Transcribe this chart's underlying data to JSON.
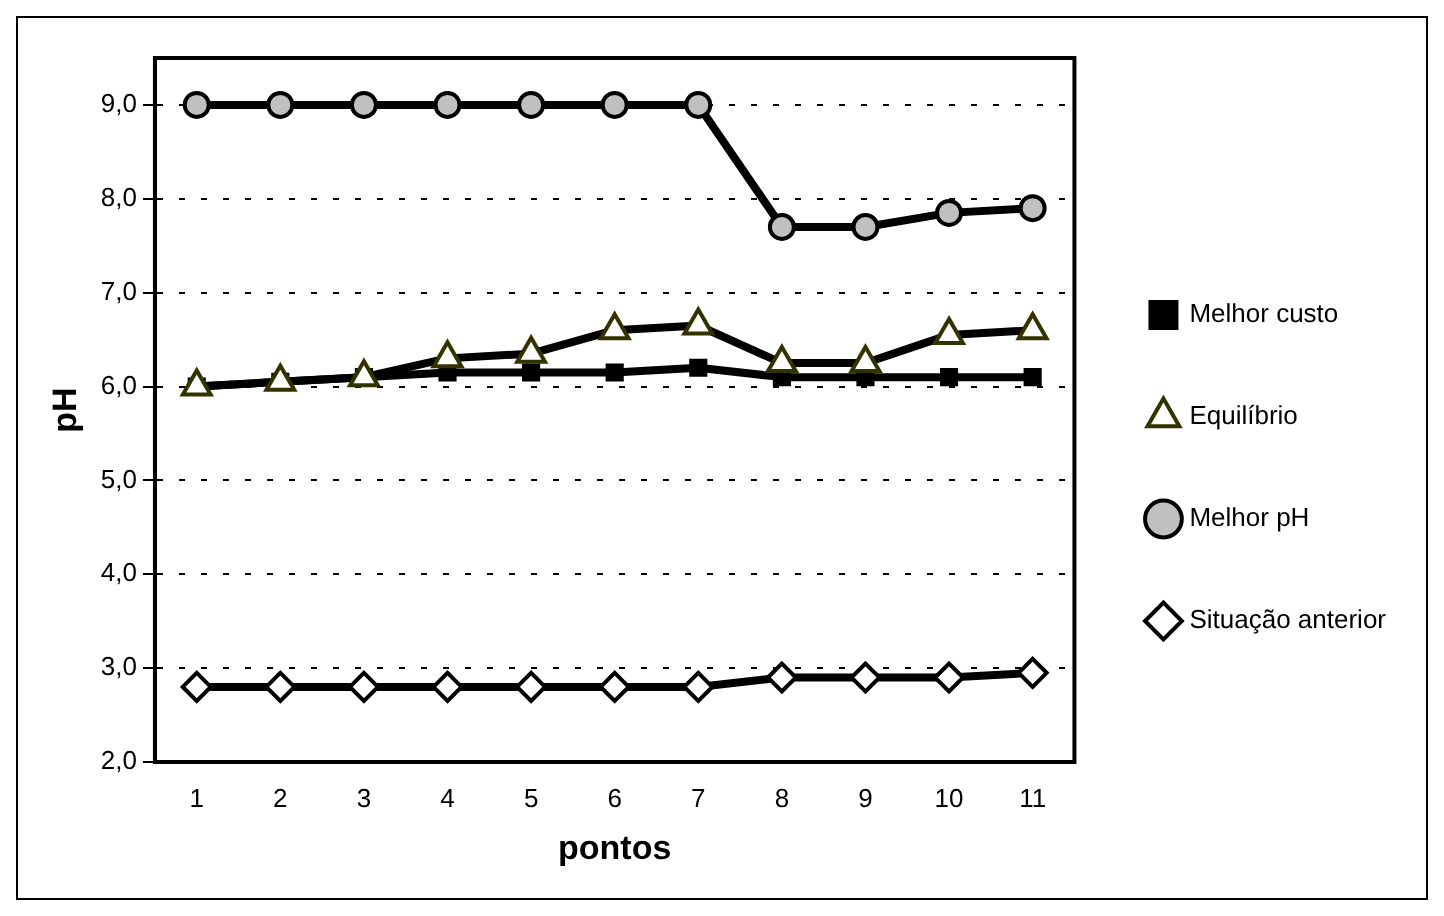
{
  "chart_data": {
    "type": "line",
    "xlabel": "pontos",
    "ylabel": "pH",
    "categories": [
      "1",
      "2",
      "3",
      "4",
      "5",
      "6",
      "7",
      "8",
      "9",
      "10",
      "11"
    ],
    "series": [
      {
        "name": "Melhor custo",
        "color": "#000000",
        "marker": "square",
        "values": [
          6.0,
          6.05,
          6.1,
          6.15,
          6.15,
          6.15,
          6.2,
          6.1,
          6.1,
          6.1,
          6.1
        ]
      },
      {
        "name": "Equilíbrio",
        "color": "#000000",
        "marker": "triangle",
        "values": [
          6.0,
          6.05,
          6.1,
          6.3,
          6.35,
          6.6,
          6.65,
          6.25,
          6.25,
          6.55,
          6.6
        ]
      },
      {
        "name": "Melhor pH",
        "color": "#000000",
        "marker": "circle",
        "values": [
          9.0,
          9.0,
          9.0,
          9.0,
          9.0,
          9.0,
          9.0,
          7.7,
          7.7,
          7.85,
          7.9
        ]
      },
      {
        "name": "Situação anterior",
        "color": "#000000",
        "marker": "diamond",
        "values": [
          2.8,
          2.8,
          2.8,
          2.8,
          2.8,
          2.8,
          2.8,
          2.9,
          2.9,
          2.9,
          2.95
        ]
      }
    ],
    "ylim": [
      2,
      9.5
    ],
    "yticks": [
      {
        "value": 2,
        "label": "2,0"
      },
      {
        "value": 3,
        "label": "3,0"
      },
      {
        "value": 4,
        "label": "4,0"
      },
      {
        "value": 5,
        "label": "5,0"
      },
      {
        "value": 6,
        "label": "6,0"
      },
      {
        "value": 7,
        "label": "7,0"
      },
      {
        "value": 8,
        "label": "8,0"
      },
      {
        "value": 9,
        "label": "9,0"
      }
    ],
    "grid": "y",
    "legend": "right",
    "line_style": "solid"
  }
}
